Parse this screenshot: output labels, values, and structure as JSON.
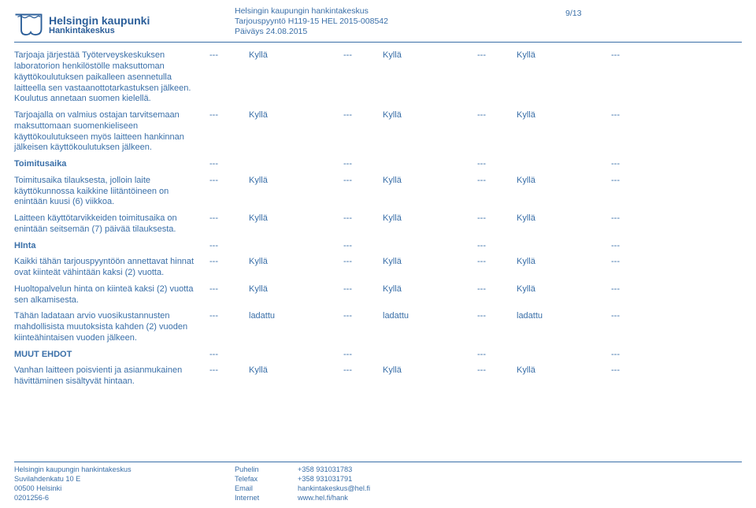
{
  "header": {
    "logo_line1": "Helsingin kaupunki",
    "logo_line2": "Hankintakeskus",
    "meta_line1": "Helsingin kaupungin hankintakeskus",
    "meta_line2": "Tarjouspyyntö H119-15 HEL 2015-008542",
    "meta_line3": "Päiväys 24.08.2015",
    "page_number": "9/13"
  },
  "colors": {
    "primary": "#3a6fa8",
    "rule": "#3a6fa8",
    "background": "#ffffff"
  },
  "dash": "---",
  "rows": [
    {
      "type": "data",
      "desc": "Tarjoaja järjestää Työterveyskeskuksen laboratorion henkilöstölle maksuttoman käyttökoulutuksen paikalleen asennetulla laitteella sen vastaanottotarkastuksen jälkeen. Koulutus annetaan suomen kielellä.",
      "vals": [
        "Kyllä",
        "Kyllä",
        "Kyllä"
      ]
    },
    {
      "type": "data",
      "desc": "Tarjoajalla on valmius ostajan tarvitsemaan maksuttomaan suomenkieliseen käyttökoulutukseen myös laitteen hankinnan jälkeisen käyttökoulutuksen jälkeen.",
      "vals": [
        "Kyllä",
        "Kyllä",
        "Kyllä"
      ]
    },
    {
      "type": "section",
      "desc": "Toimitusaika"
    },
    {
      "type": "data",
      "desc": "Toimitusaika tilauksesta, jolloin laite käyttökunnossa kaikkine liitäntöineen on enintään kuusi (6) viikkoa.",
      "vals": [
        "Kyllä",
        "Kyllä",
        "Kyllä"
      ]
    },
    {
      "type": "data",
      "desc": "Laitteen käyttötarvikkeiden toimitusaika on enintään seitsemän (7) päivää tilauksesta.",
      "vals": [
        "Kyllä",
        "Kyllä",
        "Kyllä"
      ]
    },
    {
      "type": "section",
      "desc": "HInta"
    },
    {
      "type": "data",
      "desc": "Kaikki tähän tarjouspyyntöön annettavat hinnat ovat kiinteät vähintään kaksi (2) vuotta.",
      "vals": [
        "Kyllä",
        "Kyllä",
        "Kyllä"
      ]
    },
    {
      "type": "data",
      "desc": "Huoltopalvelun hinta on kiinteä kaksi (2) vuotta sen alkamisesta.",
      "vals": [
        "Kyllä",
        "Kyllä",
        "Kyllä"
      ]
    },
    {
      "type": "data",
      "desc": "Tähän ladataan arvio vuosikustannusten mahdollisista muutoksista kahden (2) vuoden kiinteähintaisen vuoden jälkeen.",
      "vals": [
        "ladattu",
        "ladattu",
        "ladattu"
      ]
    },
    {
      "type": "section",
      "desc": "MUUT EHDOT"
    },
    {
      "type": "data",
      "desc": "Vanhan laitteen poisvienti ja asianmukainen hävittäminen sisältyvät hintaan.",
      "vals": [
        "Kyllä",
        "Kyllä",
        "Kyllä"
      ]
    }
  ],
  "footer": {
    "col1": [
      "Helsingin kaupungin hankintakeskus",
      "Suvilahdenkatu 10 E",
      "00500 Helsinki",
      "0201256-6"
    ],
    "col2": [
      "Puhelin",
      "Telefax",
      "Email",
      "Internet"
    ],
    "col3": [
      "+358 931031783",
      "+358 931031791",
      "hankintakeskus@hel.fi",
      "www.hel.fi/hank"
    ]
  }
}
